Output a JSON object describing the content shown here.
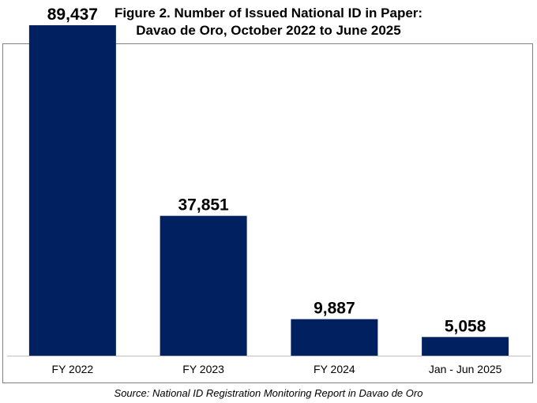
{
  "chart_data": {
    "type": "bar",
    "title_line1": "Figure 2. Number of Issued National ID in Paper:",
    "title_line2": "Davao de Oro, October 2022 to June 2025",
    "categories": [
      "FY 2022",
      "FY 2023",
      "FY 2024",
      "Jan - Jun 2025"
    ],
    "values": [
      89437,
      37851,
      9887,
      5058
    ],
    "value_labels": [
      "89,437",
      "37,851",
      "9,887",
      "5,058"
    ],
    "ylim": [
      0,
      92000
    ],
    "bar_color": "#002060",
    "grid": false,
    "legend": "none",
    "source": "Source: National ID Registration Monitoring Report in Davao de Oro"
  }
}
